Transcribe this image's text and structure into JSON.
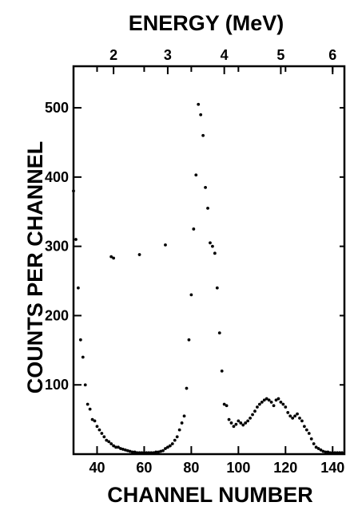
{
  "chart_data": {
    "type": "scatter",
    "title": "",
    "xlabel": "CHANNEL NUMBER",
    "ylabel": "COUNTS PER CHANNEL",
    "top_axis_label": "ENERGY (MeV)",
    "xlim": [
      30,
      145
    ],
    "ylim": [
      0,
      560
    ],
    "x_ticks": [
      40,
      60,
      80,
      100,
      120,
      140
    ],
    "y_ticks": [
      100,
      200,
      300,
      400,
      500
    ],
    "top_ticks": [
      {
        "label": "2",
        "channel": 47
      },
      {
        "label": "3",
        "channel": 70
      },
      {
        "label": "4",
        "channel": 94
      },
      {
        "label": "5",
        "channel": 118
      },
      {
        "label": "6",
        "channel": 140
      }
    ],
    "grid": false,
    "legend": "none",
    "marker_color": "#000000",
    "series": [
      {
        "x": [
          30,
          31,
          32,
          33,
          34,
          35,
          36,
          37,
          38,
          39,
          40,
          41,
          42,
          43,
          44,
          45,
          46,
          47,
          48,
          49,
          50,
          51,
          52,
          53,
          54,
          55,
          56,
          57,
          58,
          59,
          60,
          61,
          62,
          63,
          64,
          65,
          66,
          67,
          68,
          69,
          70,
          71,
          72,
          73,
          74,
          75,
          76,
          77,
          78,
          79,
          80,
          81,
          82,
          83,
          84,
          85,
          86,
          87,
          88,
          89,
          90,
          91,
          92,
          93,
          94,
          95,
          96,
          97,
          98,
          99,
          100,
          101,
          102,
          103,
          104,
          105,
          106,
          107,
          108,
          109,
          110,
          111,
          112,
          113,
          114,
          115,
          116,
          117,
          118,
          119,
          120,
          121,
          122,
          123,
          124,
          125,
          126,
          127,
          128,
          129,
          130,
          131,
          132,
          133,
          134,
          135,
          136,
          137,
          138,
          139,
          140,
          141,
          142,
          143,
          144,
          46,
          47,
          58,
          69
        ],
        "y": [
          380,
          310,
          240,
          165,
          140,
          100,
          72,
          65,
          50,
          48,
          40,
          35,
          30,
          25,
          20,
          18,
          15,
          12,
          10,
          10,
          8,
          7,
          6,
          5,
          4,
          3,
          3,
          2,
          2,
          2,
          2,
          2,
          2,
          2,
          2,
          3,
          3,
          4,
          5,
          8,
          10,
          12,
          15,
          20,
          25,
          35,
          45,
          55,
          95,
          165,
          230,
          325,
          403,
          505,
          490,
          460,
          385,
          355,
          305,
          300,
          290,
          240,
          175,
          120,
          72,
          70,
          50,
          45,
          40,
          43,
          48,
          45,
          42,
          45,
          48,
          52,
          57,
          62,
          68,
          72,
          75,
          78,
          80,
          78,
          75,
          70,
          78,
          80,
          75,
          72,
          68,
          60,
          55,
          52,
          55,
          58,
          52,
          48,
          40,
          35,
          30,
          22,
          15,
          10,
          8,
          6,
          4,
          3,
          3,
          2,
          2,
          2,
          2,
          2,
          2,
          285,
          283,
          288,
          302
        ]
      }
    ]
  }
}
